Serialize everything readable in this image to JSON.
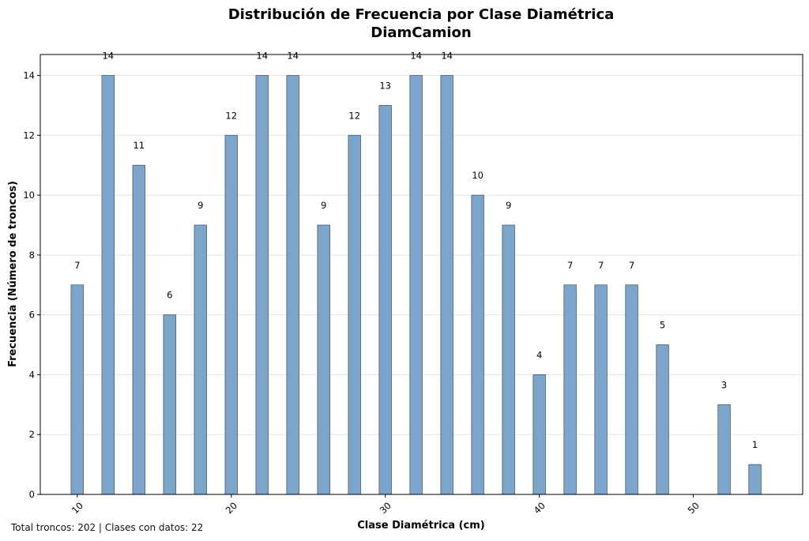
{
  "chart_data": {
    "type": "bar",
    "title": "Distribución de Frecuencia por Clase Diamétrica",
    "subtitle": "DiamCamion",
    "xlabel": "Clase Diamétrica (cm)",
    "ylabel": "Frecuencia (Número de troncos)",
    "x": [
      10,
      12,
      14,
      16,
      18,
      20,
      22,
      24,
      26,
      28,
      30,
      32,
      34,
      36,
      38,
      40,
      42,
      44,
      46,
      48,
      52,
      54
    ],
    "values": [
      7,
      14,
      11,
      6,
      9,
      12,
      14,
      14,
      9,
      12,
      13,
      14,
      14,
      10,
      9,
      4,
      7,
      7,
      7,
      5,
      3,
      1
    ],
    "xlim": [
      7.6,
      57.1
    ],
    "ylim": [
      0,
      14.7
    ],
    "xticks": [
      10,
      20,
      30,
      40,
      50
    ],
    "yticks": [
      0,
      2,
      4,
      6,
      8,
      10,
      12,
      14
    ],
    "grid": "horizontal",
    "bar_color": "#7ba5cb",
    "edge_color": "#4a5d6e"
  },
  "footer": "Total troncos: 202 | Clases con datos: 22"
}
